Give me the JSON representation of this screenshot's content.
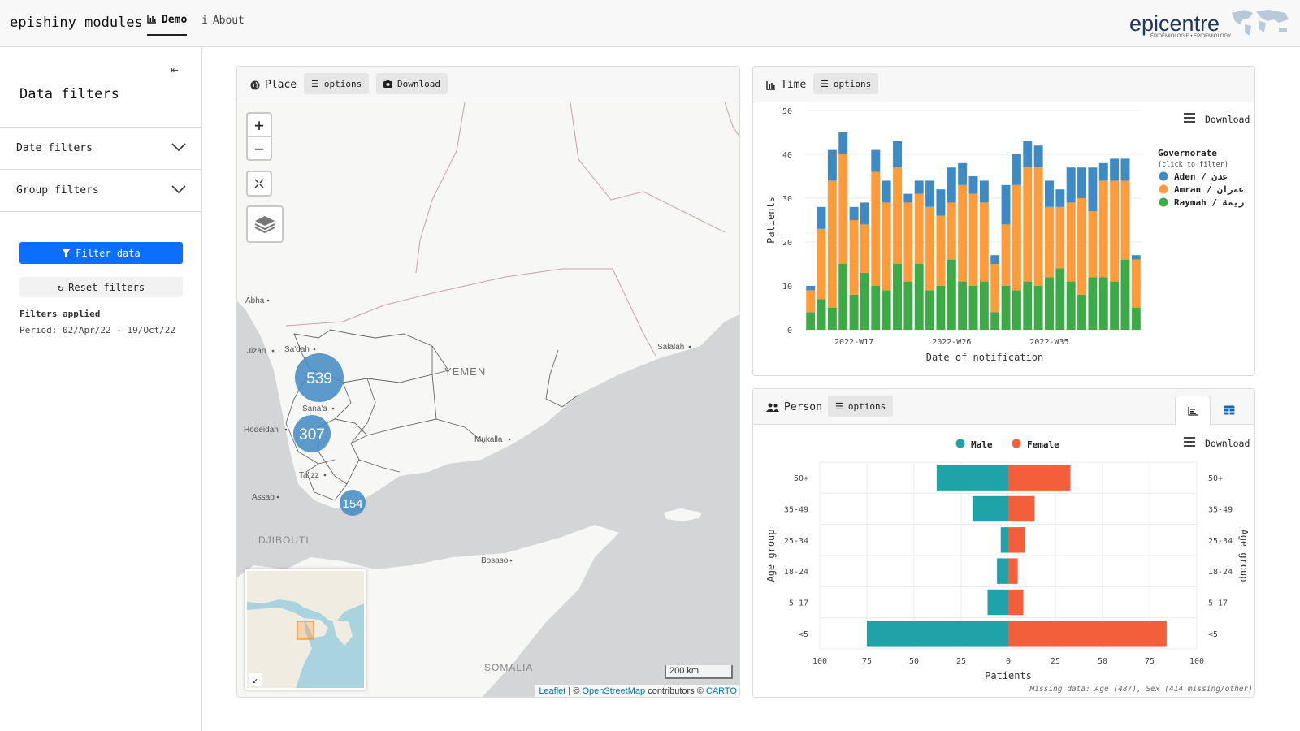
{
  "navbar": {
    "brand": "epishiny modules",
    "tabs": [
      {
        "label": "Demo",
        "active": true
      },
      {
        "label": "About",
        "active": false
      }
    ],
    "logo_text": "epicentre",
    "logo_subtext": "ÉPIDÉMIOLOGIE • EPIDEMIOLOGY"
  },
  "sidebar": {
    "title": "Data filters",
    "accordions": [
      {
        "label": "Date filters"
      },
      {
        "label": "Group filters"
      }
    ],
    "filter_button": "Filter data",
    "reset_button": "Reset filters",
    "filters_applied_title": "Filters applied",
    "period": "Period: 02/Apr/22 - 19/Oct/22"
  },
  "place": {
    "title": "Place",
    "options_label": "options",
    "download_label": "Download",
    "clusters": [
      {
        "label": "539"
      },
      {
        "label": "307"
      },
      {
        "label": "154"
      }
    ],
    "place_labels": [
      "Abha",
      "Sa'dah",
      "Jizan",
      "YEMEN",
      "Sana'a",
      "Hodeidah",
      "Salalah",
      "Mukalla",
      "Ta'izz",
      "Assab",
      "DJIBOUTI",
      "Bosaso",
      "SOMALIA"
    ],
    "scale_label": "200 km",
    "attribution": {
      "leaflet": "Leaflet",
      "sep1": " | © ",
      "osm": "OpenStreetMap",
      "mid": " contributors © ",
      "carto": "CARTO"
    },
    "colors": {
      "cluster": "#3f8ac2",
      "land": "#f7f7f5",
      "sea": "#d4d5d6",
      "border": "#c9a1a8"
    }
  },
  "time": {
    "title": "Time",
    "options_label": "options",
    "download_label": "Download",
    "legend_title": "Governorate",
    "legend_subtitle": "(click to filter)",
    "chart_data": {
      "type": "bar",
      "stacked": true,
      "xlabel": "Date of notification",
      "ylabel": "Patients",
      "ylim": [
        0,
        50
      ],
      "yticks": [
        0,
        10,
        20,
        30,
        40,
        50
      ],
      "xtick_labels": [
        {
          "label": "2022-W17",
          "index": 4
        },
        {
          "label": "2022-W26",
          "index": 13
        },
        {
          "label": "2022-W35",
          "index": 22
        }
      ],
      "series": [
        {
          "name": "Raymah / ريمة",
          "color": "#3daa47",
          "values": [
            4,
            7,
            5,
            15,
            8,
            13,
            10,
            9,
            15,
            11,
            15,
            9,
            10,
            16,
            11,
            10,
            11,
            4,
            10,
            9,
            11,
            10,
            12,
            14,
            11,
            8,
            12,
            12,
            11,
            16,
            5
          ]
        },
        {
          "name": "Amran / عمران",
          "color": "#fe9c3c",
          "values": [
            5,
            16,
            29,
            25,
            17,
            11,
            26,
            20,
            22,
            18,
            16,
            19,
            16,
            13,
            22,
            21,
            18,
            11,
            14,
            24,
            26,
            27,
            16,
            14,
            18,
            22,
            15,
            22,
            23,
            18,
            11
          ]
        },
        {
          "name": "Aden / عدن",
          "color": "#3f8ac2",
          "values": [
            1,
            5,
            7,
            5,
            3,
            5,
            5,
            5,
            6,
            2,
            3,
            6,
            6,
            8,
            5,
            4,
            5,
            2,
            9,
            7,
            6,
            5,
            6,
            4,
            8,
            7,
            10,
            4,
            5,
            5,
            1
          ]
        }
      ]
    }
  },
  "person": {
    "title": "Person",
    "options_label": "options",
    "download_label": "Download",
    "missing_note": "Missing data: Age (487), Sex (414 missing/other)",
    "chart_data": {
      "type": "bar",
      "orientation": "horizontal-pyramid",
      "categories": [
        "<5",
        "5-17",
        "18-24",
        "25-34",
        "35-49",
        "50+"
      ],
      "series": [
        {
          "name": "Male",
          "color": "#1fa3a8",
          "values": [
            75,
            11,
            6,
            4,
            19,
            38
          ]
        },
        {
          "name": "Female",
          "color": "#f25f3a",
          "values": [
            84,
            8,
            5,
            9,
            14,
            33
          ]
        }
      ],
      "xlabel": "Patients",
      "ylabel": "Age group",
      "xlim": [
        -100,
        100
      ],
      "xtick_labels": [
        "100",
        "75",
        "50",
        "25",
        "0",
        "25",
        "50",
        "75",
        "100"
      ]
    }
  }
}
